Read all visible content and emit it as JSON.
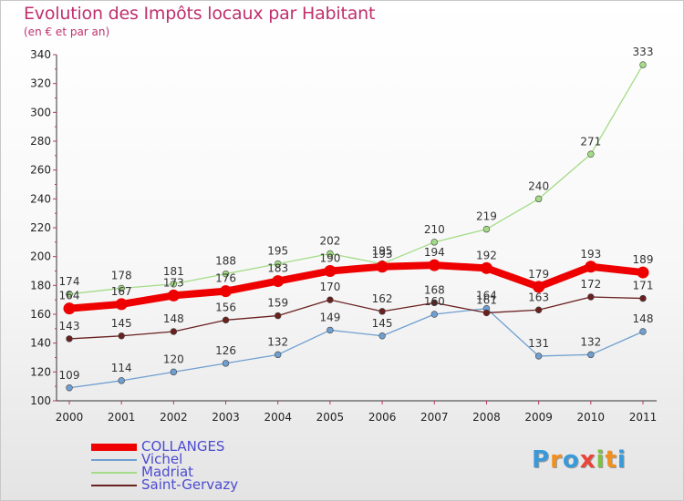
{
  "chart_data": {
    "type": "line",
    "title": "Evolution des Impôts locaux par Habitant",
    "subtitle": "(en € et par an)",
    "xlabel": "",
    "ylabel": "",
    "ylim": [
      100,
      340
    ],
    "yticks": [
      100,
      120,
      140,
      160,
      180,
      200,
      220,
      240,
      260,
      280,
      300,
      320,
      340
    ],
    "categories": [
      "2000",
      "2001",
      "2002",
      "2003",
      "2004",
      "2005",
      "2006",
      "2007",
      "2008",
      "2009",
      "2010",
      "2011"
    ],
    "grid": false,
    "legend_position": "bottom-left",
    "series": [
      {
        "name": "COLLANGES",
        "color": "#ee0000",
        "values": [
          164,
          167,
          173,
          176,
          183,
          190,
          193,
          194,
          192,
          179,
          193,
          189
        ]
      },
      {
        "name": "Vichel",
        "color": "#6f9fd0",
        "values": [
          109,
          114,
          120,
          126,
          132,
          149,
          145,
          160,
          164,
          131,
          132,
          148
        ]
      },
      {
        "name": "Madriat",
        "color": "#a3dc86",
        "values": [
          174,
          178,
          181,
          188,
          195,
          202,
          195,
          210,
          219,
          240,
          271,
          333
        ]
      },
      {
        "name": "Saint-Gervazy",
        "color": "#6b2020",
        "values": [
          143,
          145,
          148,
          156,
          159,
          170,
          162,
          168,
          161,
          163,
          172,
          171
        ]
      }
    ]
  },
  "brand": {
    "letters": [
      "P",
      "r",
      "o",
      "x",
      "i",
      "t",
      "i"
    ],
    "colors": [
      "#3a9ad9",
      "#f0901e",
      "#3a9ad9",
      "#e8443a",
      "#7cc242",
      "#f0901e",
      "#3a9ad9"
    ]
  }
}
